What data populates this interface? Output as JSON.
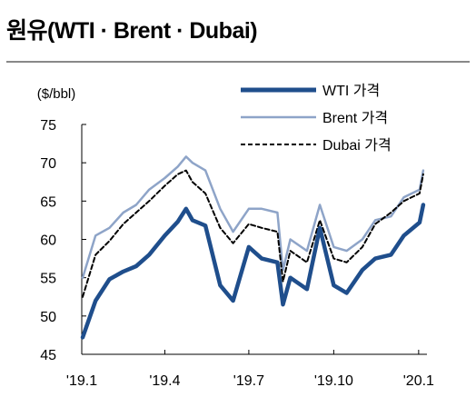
{
  "title": "원유(WTI · Brent · Dubai)",
  "chart_data": {
    "type": "line",
    "title": "원유(WTI · Brent · Dubai)",
    "ylabel": "($/bbl)",
    "xlabel": "",
    "ylim": [
      45,
      75
    ],
    "y_ticks": [
      45,
      50,
      55,
      60,
      65,
      70,
      75
    ],
    "x_ticks": [
      "'19.1",
      "'19.4",
      "'19.7",
      "'19.10",
      "'20.1"
    ],
    "grid": false,
    "legend": "top-right",
    "x": [
      "19.01.02",
      "19.01.16",
      "19.01.31",
      "19.02.15",
      "19.03.01",
      "19.03.15",
      "19.04.01",
      "19.04.15",
      "19.04.24",
      "19.05.01",
      "19.05.15",
      "19.05.31",
      "19.06.14",
      "19.07.01",
      "19.07.15",
      "19.08.01",
      "19.08.07",
      "19.08.15",
      "19.09.02",
      "19.09.16",
      "19.10.01",
      "19.10.15",
      "19.11.01",
      "19.11.15",
      "19.12.02",
      "19.12.16",
      "20.01.02",
      "20.01.06"
    ],
    "series": [
      {
        "name": "WTI 가격",
        "color": "#1f4e8c",
        "values": [
          47.2,
          52.0,
          54.8,
          55.8,
          56.5,
          58.0,
          60.5,
          62.3,
          64.0,
          62.5,
          61.8,
          54.0,
          52.0,
          59.0,
          57.5,
          57.0,
          51.5,
          55.0,
          53.5,
          61.5,
          54.0,
          53.0,
          56.0,
          57.5,
          58.0,
          60.5,
          62.2,
          64.5
        ]
      },
      {
        "name": "Brent 가격",
        "color": "#8ea4c8",
        "values": [
          55.0,
          60.5,
          61.5,
          63.5,
          64.5,
          66.5,
          68.0,
          69.5,
          70.8,
          70.0,
          69.0,
          64.0,
          61.0,
          64.0,
          64.0,
          63.5,
          56.0,
          60.0,
          58.5,
          64.5,
          59.0,
          58.5,
          60.0,
          62.5,
          63.0,
          65.5,
          66.5,
          69.0
        ]
      },
      {
        "name": "Dubai 가격",
        "color": "#000000",
        "values": [
          52.5,
          58.0,
          59.8,
          62.0,
          63.5,
          65.0,
          67.0,
          68.5,
          69.0,
          67.5,
          66.0,
          61.5,
          59.5,
          62.0,
          61.5,
          61.0,
          54.5,
          58.5,
          57.0,
          62.5,
          57.5,
          57.0,
          59.0,
          62.0,
          63.5,
          65.0,
          66.0,
          68.5
        ]
      }
    ]
  }
}
